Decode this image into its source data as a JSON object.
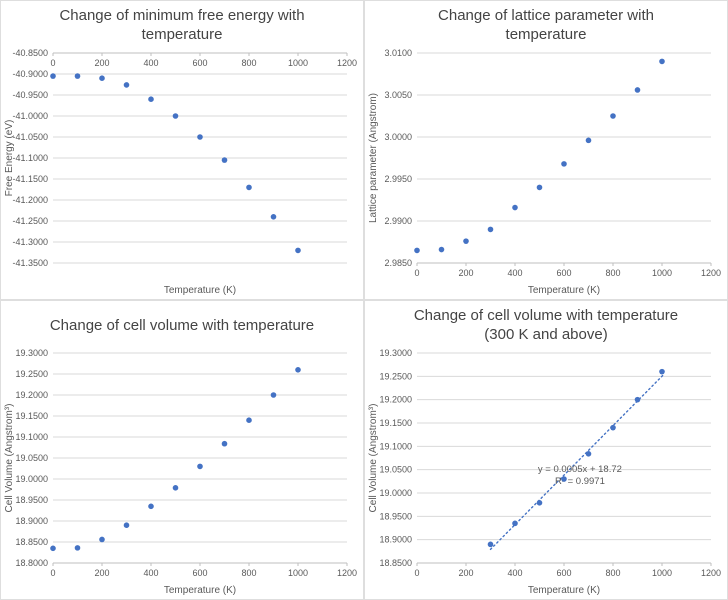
{
  "colors": {
    "gridline": "#D9D9D9",
    "axis": "#BFBFBF",
    "tick_text": "#595959",
    "marker": "#4472C4"
  },
  "chart_data": [
    {
      "type": "scatter",
      "title": "Change of minimum free energy with\ntemperature",
      "xlabel": "Temperature (K)",
      "ylabel": "Free Energy (eV)",
      "x": [
        0,
        100,
        200,
        300,
        400,
        500,
        600,
        700,
        800,
        900,
        1000
      ],
      "y": [
        -40.905,
        -40.905,
        -40.91,
        -40.926,
        -40.96,
        -41.0,
        -41.05,
        -41.105,
        -41.17,
        -41.24,
        -41.32
      ],
      "xlim": [
        0,
        1200
      ],
      "xtick_step": 200,
      "ylim": [
        -41.35,
        -40.85
      ],
      "ytick_step": 0.05,
      "y_decimals": 4,
      "x_labels_at": "top",
      "grid": "horizontal",
      "legend": "none",
      "marker_color": "#4472C4"
    },
    {
      "type": "scatter",
      "title": "Change of lattice parameter with\ntemperature",
      "xlabel": "Temperature (K)",
      "ylabel": "Lattice parameter (Angstrom)",
      "x": [
        0,
        100,
        200,
        300,
        400,
        500,
        600,
        700,
        800,
        900,
        1000
      ],
      "y": [
        2.9865,
        2.9866,
        2.9876,
        2.989,
        2.9916,
        2.994,
        2.9968,
        2.9996,
        3.0025,
        3.0056,
        3.009
      ],
      "xlim": [
        0,
        1200
      ],
      "xtick_step": 200,
      "ylim": [
        2.985,
        3.01
      ],
      "ytick_step": 0.005,
      "y_decimals": 4,
      "x_labels_at": "bottom",
      "grid": "horizontal",
      "legend": "none",
      "marker_color": "#4472C4"
    },
    {
      "type": "scatter",
      "title": "Change of cell volume with temperature",
      "xlabel": "Temperature (K)",
      "ylabel": "Cell Volume (Angstrom³)",
      "x": [
        0,
        100,
        200,
        300,
        400,
        500,
        600,
        700,
        800,
        900,
        1000
      ],
      "y": [
        18.835,
        18.836,
        18.856,
        18.89,
        18.935,
        18.979,
        19.03,
        19.084,
        19.14,
        19.2,
        19.26
      ],
      "xlim": [
        0,
        1200
      ],
      "xtick_step": 200,
      "ylim": [
        18.8,
        19.3
      ],
      "ytick_step": 0.05,
      "y_decimals": 4,
      "x_labels_at": "bottom",
      "grid": "horizontal",
      "legend": "none",
      "marker_color": "#4472C4"
    },
    {
      "type": "scatter",
      "title": "Change of cell volume with temperature\n(300 K and above)",
      "xlabel": "Temperature (K)",
      "ylabel": "Cell Volume (Angstrom³)",
      "x": [
        300,
        400,
        500,
        600,
        700,
        800,
        900,
        1000
      ],
      "y": [
        18.89,
        18.935,
        18.979,
        19.03,
        19.084,
        19.14,
        19.2,
        19.26
      ],
      "xlim": [
        0,
        1200
      ],
      "xtick_step": 200,
      "ylim": [
        18.85,
        19.3
      ],
      "ytick_step": 0.05,
      "y_decimals": 4,
      "x_labels_at": "bottom",
      "grid": "horizontal",
      "legend": "none",
      "marker_color": "#4472C4",
      "trendline": {
        "style": "dotted",
        "x_start": 300,
        "x_end": 1010,
        "labels": [
          "y = 0.0005x + 18.72",
          "R² = 0.9971"
        ],
        "label_x": 665,
        "label_y": 19.045
      }
    }
  ]
}
